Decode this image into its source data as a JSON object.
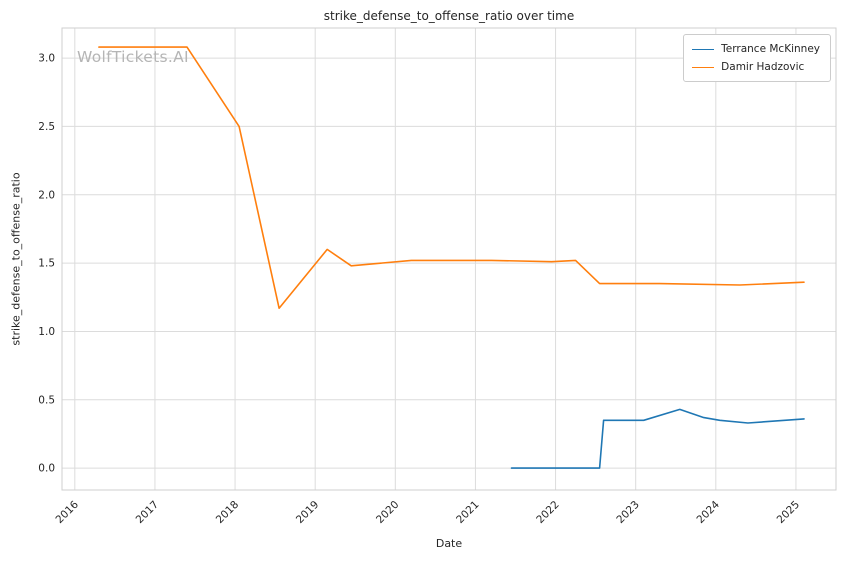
{
  "watermark": "WolfTickets.AI",
  "chart_data": {
    "type": "line",
    "title": "strike_defense_to_offense_ratio over time",
    "xlabel": "Date",
    "ylabel": "strike_defense_to_offense_ratio",
    "legend_position": "upper right",
    "grid": true,
    "background": "#ffffff",
    "grid_color": "#dcdcdc",
    "xlim": [
      2015.84,
      2025.5
    ],
    "ylim": [
      -0.16,
      3.22
    ],
    "x_tick_values": [
      2016,
      2017,
      2018,
      2019,
      2020,
      2021,
      2022,
      2023,
      2024,
      2025
    ],
    "x_tick_labels": [
      "2016",
      "2017",
      "2018",
      "2019",
      "2020",
      "2021",
      "2022",
      "2023",
      "2024",
      "2025"
    ],
    "y_tick_values": [
      0.0,
      0.5,
      1.0,
      1.5,
      2.0,
      2.5,
      3.0
    ],
    "y_tick_labels": [
      "0.0",
      "0.5",
      "1.0",
      "1.5",
      "2.0",
      "2.5",
      "3.0"
    ],
    "series": [
      {
        "name": "Terrance McKinney",
        "color": "#1f77b4",
        "x": [
          2021.45,
          2022.0,
          2022.55,
          2022.6,
          2023.1,
          2023.55,
          2023.85,
          2024.05,
          2024.4,
          2025.1
        ],
        "y": [
          0.0,
          0.0,
          0.0,
          0.35,
          0.35,
          0.43,
          0.37,
          0.35,
          0.33,
          0.36
        ]
      },
      {
        "name": "Damir Hadzovic",
        "color": "#ff7f0e",
        "x": [
          2016.3,
          2016.6,
          2017.4,
          2018.05,
          2018.55,
          2019.15,
          2019.45,
          2020.2,
          2021.2,
          2021.95,
          2022.25,
          2022.55,
          2023.3,
          2024.3,
          2025.1
        ],
        "y": [
          3.08,
          3.08,
          3.08,
          2.5,
          1.17,
          1.6,
          1.48,
          1.52,
          1.52,
          1.51,
          1.52,
          1.35,
          1.35,
          1.34,
          1.36
        ]
      }
    ]
  }
}
